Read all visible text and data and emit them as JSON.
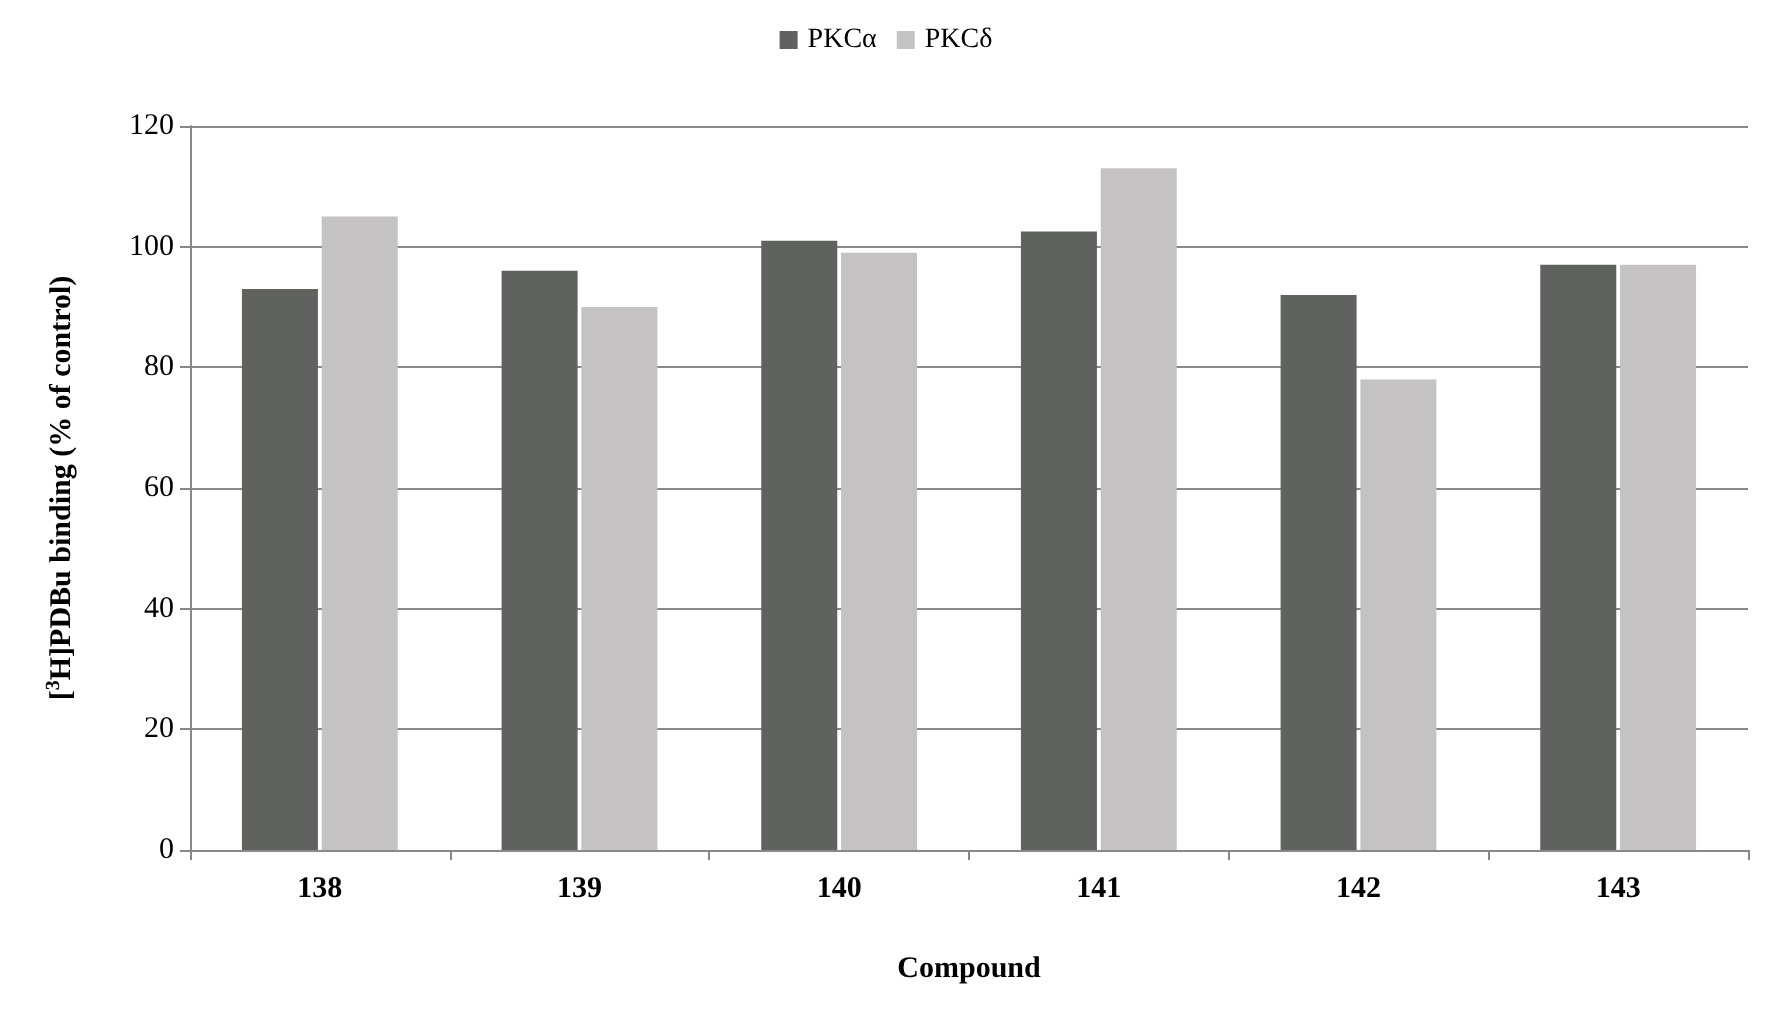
{
  "chart_data": {
    "type": "bar",
    "xlabel": "Compound",
    "ylabel": "[$^{3}$H]PDBu binding (% of control)",
    "categories": [
      "138",
      "139",
      "140",
      "141",
      "142",
      "143"
    ],
    "series": [
      {
        "name": "PKCα",
        "color": "#5f625e",
        "values": [
          93,
          96,
          101,
          102.5,
          92,
          97
        ]
      },
      {
        "name": "PKCδ",
        "color": "#c4c2c3",
        "values": [
          105,
          90,
          99,
          113,
          78,
          97
        ]
      }
    ],
    "ylim": [
      0,
      120
    ],
    "yticks": [
      0,
      20,
      40,
      60,
      80,
      100,
      120
    ],
    "grid": "y",
    "legend": "top"
  }
}
